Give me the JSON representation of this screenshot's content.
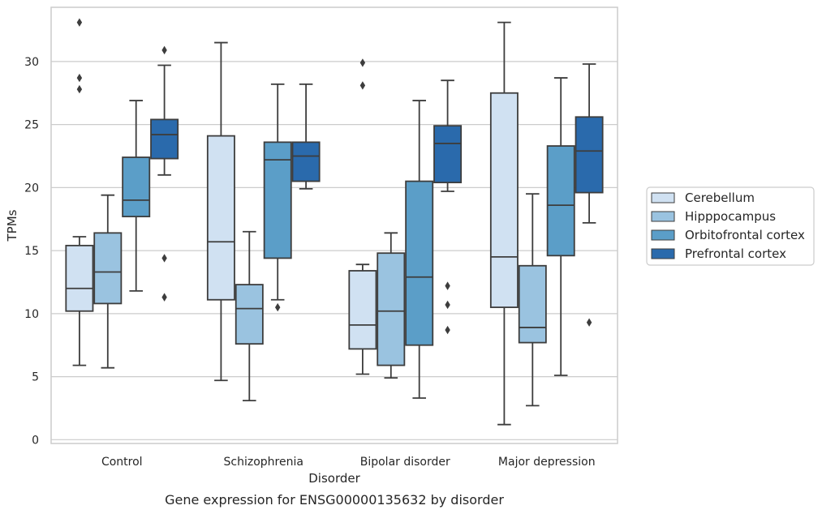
{
  "chart_data": {
    "type": "box",
    "title": "Gene expression for ENSG00000135632 by disorder",
    "xlabel": "Disorder",
    "ylabel": "TPMs",
    "ylim": [
      -0.3,
      34.3
    ],
    "yticks": [
      0,
      5,
      10,
      15,
      20,
      25,
      30
    ],
    "grid": "horizontal",
    "legend_position": "right",
    "categories": [
      "Control",
      "Schizophrenia",
      "Bipolar disorder",
      "Major depression"
    ],
    "series": [
      {
        "name": "Cerebellum",
        "color": "#d0e1f2",
        "boxes": [
          {
            "whisker_low": 5.9,
            "q1": 10.2,
            "median": 12.0,
            "q3": 15.4,
            "whisker_high": 16.1,
            "outliers": []
          },
          {
            "whisker_low": 4.7,
            "q1": 11.1,
            "median": 15.7,
            "q3": 24.1,
            "whisker_high": 31.5,
            "outliers": []
          },
          {
            "whisker_low": 5.2,
            "q1": 7.2,
            "median": 9.1,
            "q3": 13.4,
            "whisker_high": 13.9,
            "outliers": []
          },
          {
            "whisker_low": 1.2,
            "q1": 10.5,
            "median": 14.5,
            "q3": 27.5,
            "whisker_high": 33.1,
            "outliers": []
          }
        ]
      },
      {
        "name": "Hipppocampus",
        "color": "#9ac3e0",
        "boxes": [
          {
            "whisker_low": 5.7,
            "q1": 10.8,
            "median": 13.3,
            "q3": 16.4,
            "whisker_high": 19.4,
            "outliers": []
          },
          {
            "whisker_low": 3.1,
            "q1": 7.6,
            "median": 10.4,
            "q3": 12.3,
            "whisker_high": 16.5,
            "outliers": []
          },
          {
            "whisker_low": 4.9,
            "q1": 5.9,
            "median": 10.2,
            "q3": 14.8,
            "whisker_high": 16.4,
            "outliers": []
          },
          {
            "whisker_low": 2.7,
            "q1": 7.7,
            "median": 8.9,
            "q3": 13.8,
            "whisker_high": 19.5,
            "outliers": []
          }
        ]
      },
      {
        "name": "Orbitofrontal cortex",
        "color": "#5b9ec8",
        "boxes": [
          {
            "whisker_low": 11.8,
            "q1": 17.7,
            "median": 19.0,
            "q3": 22.4,
            "whisker_high": 26.9,
            "outliers": []
          },
          {
            "whisker_low": 11.1,
            "q1": 14.4,
            "median": 22.2,
            "q3": 23.6,
            "whisker_high": 28.2,
            "outliers": [
              10.5
            ]
          },
          {
            "whisker_low": 3.3,
            "q1": 7.5,
            "median": 12.9,
            "q3": 20.5,
            "whisker_high": 26.9,
            "outliers": []
          },
          {
            "whisker_low": 5.1,
            "q1": 14.6,
            "median": 18.6,
            "q3": 23.3,
            "whisker_high": 28.7,
            "outliers": []
          }
        ]
      },
      {
        "name": "Prefrontal cortex",
        "color": "#2a6aac",
        "boxes": [
          {
            "whisker_low": 21.0,
            "q1": 22.3,
            "median": 24.2,
            "q3": 25.4,
            "whisker_high": 29.7,
            "outliers": [
              30.9,
              14.4,
              11.3
            ]
          },
          {
            "whisker_low": 19.9,
            "q1": 20.5,
            "median": 22.5,
            "q3": 23.6,
            "whisker_high": 28.2,
            "outliers": []
          },
          {
            "whisker_low": 19.7,
            "q1": 20.4,
            "median": 23.5,
            "q3": 24.9,
            "whisker_high": 28.5,
            "outliers": [
              12.2,
              10.7,
              8.7
            ]
          },
          {
            "whisker_low": 17.2,
            "q1": 19.6,
            "median": 22.9,
            "q3": 25.6,
            "whisker_high": 29.8,
            "outliers": [
              9.3
            ]
          }
        ]
      }
    ],
    "extra_outliers": [
      {
        "category": "Control",
        "series": "Cerebellum",
        "values": [
          33.1,
          28.7,
          27.8
        ]
      },
      {
        "category": "Bipolar disorder",
        "series": "Cerebellum",
        "values": [
          29.9,
          28.1
        ]
      }
    ]
  }
}
